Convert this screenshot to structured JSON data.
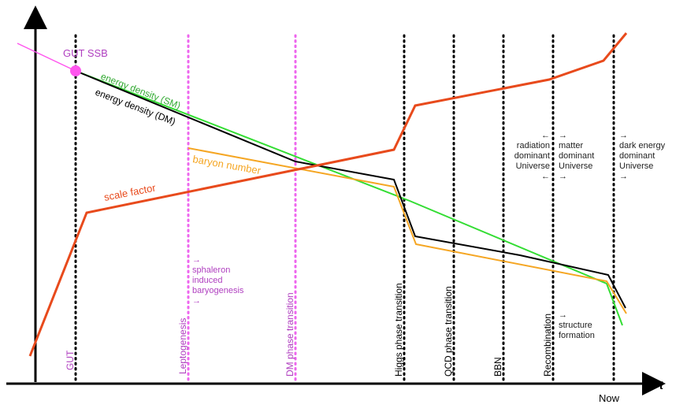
{
  "colors": {
    "scale_factor": "#e84a1c",
    "energy_sm": "#33dd33",
    "energy_dm": "#000000",
    "baryon": "#f5a623",
    "gut_ssb": "#ff55ee",
    "magenta_text": "#b040c0",
    "event_line": "#000000",
    "magenta_line": "#ee66ee"
  },
  "labels": {
    "gut_ssb": "GUT SSB",
    "energy_sm": "energy density (SM)",
    "energy_dm": "energy density (DM)",
    "baryon": "baryon number",
    "scale_factor": "scale factor",
    "t_axis": "t",
    "now": "Now"
  },
  "events": {
    "gut": "GUT",
    "leptogenesis": "Leptogenesis",
    "dm_phase": "DM phase transition",
    "higgs_phase": "Higgs phase transition",
    "qcd_phase": "QCD phase transition",
    "bbn": "BBN",
    "recombination": "Recombination"
  },
  "notes": {
    "sphaleron": [
      "→",
      "sphaleron",
      "induced",
      "baryogenesis",
      "→"
    ],
    "radiation": [
      "←",
      "radiation",
      "dominant",
      "Universe",
      "←"
    ],
    "matter": [
      "→",
      "matter",
      "dominant",
      "Universe",
      "→"
    ],
    "dark_energy": [
      "→",
      "dark energy",
      "dominant",
      "Universe",
      "→"
    ],
    "structure": [
      "→",
      "structure",
      "formation"
    ]
  }
}
